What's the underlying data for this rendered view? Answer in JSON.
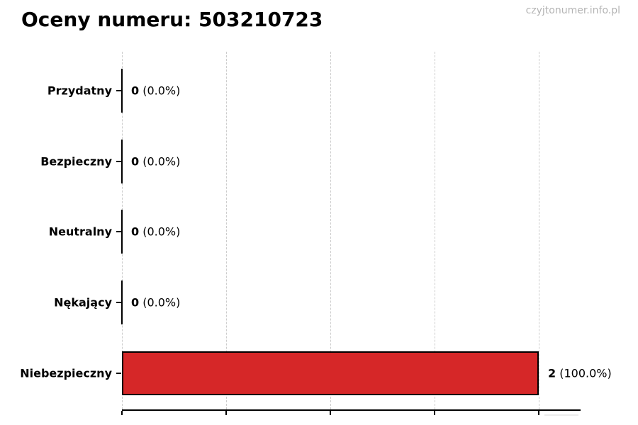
{
  "header": {
    "title": "Oceny numeru: 503210723",
    "watermark": "czyjtonumer.info.pl"
  },
  "chart_data": {
    "type": "bar",
    "orientation": "horizontal",
    "title": "Oceny numeru: 503210723",
    "categories": [
      "Przydatny",
      "Bezpieczny",
      "Neutralny",
      "Nękający",
      "Niebezpieczny"
    ],
    "values": [
      0,
      0,
      0,
      0,
      2
    ],
    "rows": [
      {
        "label": "Przydatny",
        "value": 0,
        "count": "0",
        "percent": "(0.0%)"
      },
      {
        "label": "Bezpieczny",
        "value": 0,
        "count": "0",
        "percent": "(0.0%)"
      },
      {
        "label": "Neutralny",
        "value": 0,
        "count": "0",
        "percent": "(0.0%)"
      },
      {
        "label": "Nękający",
        "value": 0,
        "count": "0",
        "percent": "(0.0%)"
      },
      {
        "label": "Niebezpieczny",
        "value": 2,
        "count": "2",
        "percent": "(100.0%)"
      }
    ],
    "xlabel": "",
    "ylabel": "",
    "xlim": [
      0,
      2.2
    ],
    "xticks": [
      0,
      0.5,
      1.0,
      1.5,
      2.0
    ],
    "grid": "vertical-dashed",
    "legend": "none",
    "bar_color": "#d62728",
    "bar_edge_color": "#000000",
    "grid_color": "#cccccc"
  }
}
